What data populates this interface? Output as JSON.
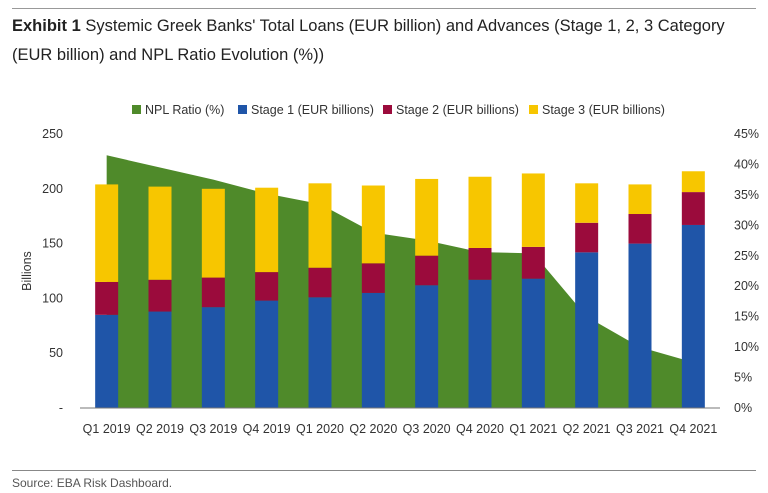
{
  "header": {
    "exhibit_label": "Exhibit 1",
    "title_text": " Systemic Greek Banks' Total Loans (EUR billion) and Advances (Stage 1, 2, 3 Category (EUR billion) and NPL Ratio Evolution (%))"
  },
  "footer": {
    "source": "Source: EBA Risk Dashboard."
  },
  "chart_data": {
    "type": "bar",
    "stacked": true,
    "categories": [
      "Q1 2019",
      "Q2 2019",
      "Q3 2019",
      "Q4 2019",
      "Q1 2020",
      "Q2 2020",
      "Q3 2020",
      "Q4 2020",
      "Q1 2021",
      "Q2 2021",
      "Q3 2021",
      "Q4 2021"
    ],
    "ylabel": "Billions",
    "ylim": [
      0,
      250
    ],
    "yticks": [
      "-",
      "50",
      "100",
      "150",
      "200",
      "250"
    ],
    "y2lim": [
      0,
      45
    ],
    "y2ticks": [
      "0%",
      "5%",
      "10%",
      "15%",
      "20%",
      "25%",
      "30%",
      "35%",
      "40%",
      "45%"
    ],
    "legend_position": "top",
    "series": [
      {
        "name": "NPL Ratio (%)",
        "type": "area",
        "axis": "right",
        "color": "#4f8a2a",
        "values": [
          41.5,
          39.5,
          37.5,
          35.2,
          33.5,
          28.8,
          27.5,
          25.6,
          25.4,
          15.0,
          10.0,
          7.5
        ]
      },
      {
        "name": "Stage 1 (EUR billions)",
        "type": "bar",
        "color": "#1f55a8",
        "values": [
          85,
          88,
          92,
          98,
          101,
          105,
          112,
          117,
          118,
          142,
          150,
          167
        ]
      },
      {
        "name": "Stage 2 (EUR billions)",
        "type": "bar",
        "color": "#9b0b3c",
        "values": [
          30,
          29,
          27,
          26,
          27,
          27,
          27,
          29,
          29,
          27,
          27,
          30
        ]
      },
      {
        "name": "Stage 3 (EUR billions)",
        "type": "bar",
        "color": "#f7c600",
        "values": [
          89,
          85,
          81,
          77,
          77,
          71,
          70,
          65,
          67,
          36,
          27,
          19
        ]
      }
    ]
  }
}
